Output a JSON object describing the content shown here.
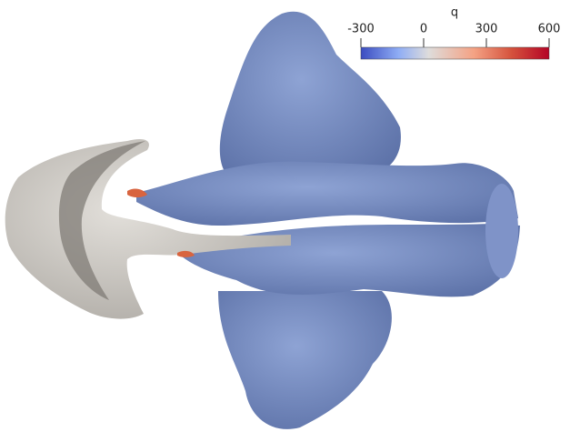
{
  "colorbar": {
    "title": "q",
    "range": [
      -300,
      600
    ],
    "ticks": [
      -300,
      0,
      300,
      600
    ]
  }
}
